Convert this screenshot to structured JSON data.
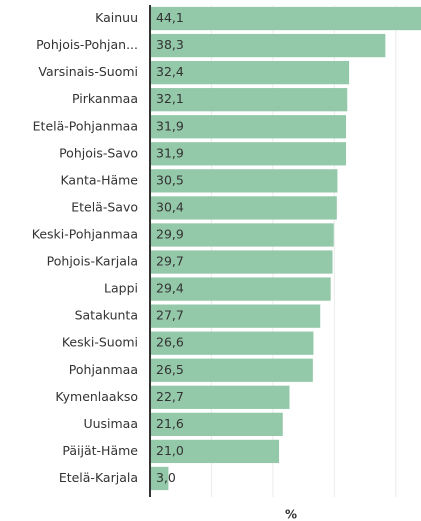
{
  "chart_data": {
    "type": "bar",
    "orientation": "horizontal",
    "categories": [
      "Kainuu",
      "Pohjois-Pohjan...",
      "Varsinais-Suomi",
      "Pirkanmaa",
      "Etelä-Pohjanmaa",
      "Pohjois-Savo",
      "Kanta-Häme",
      "Etelä-Savo",
      "Keski-Pohjanmaa",
      "Pohjois-Karjala",
      "Lappi",
      "Satakunta",
      "Keski-Suomi",
      "Pohjanmaa",
      "Kymenlaakso",
      "Uusimaa",
      "Päijät-Häme",
      "Etelä-Karjala"
    ],
    "values": [
      44.1,
      38.3,
      32.4,
      32.1,
      31.9,
      31.9,
      30.5,
      30.4,
      29.9,
      29.7,
      29.4,
      27.7,
      26.6,
      26.5,
      22.7,
      21.6,
      21.0,
      3.0
    ],
    "value_labels": [
      "44,1",
      "38,3",
      "32,4",
      "32,1",
      "31,9",
      "31,9",
      "30,5",
      "30,4",
      "29,9",
      "29,7",
      "29,4",
      "27,7",
      "26,6",
      "26,5",
      "22,7",
      "21,6",
      "21,0",
      "3,0"
    ],
    "color": "#93c8a9",
    "xlabel": "%",
    "xlim": [
      0,
      44.1
    ],
    "xticks": [
      0,
      10,
      20,
      30,
      40
    ],
    "grid": true
  }
}
